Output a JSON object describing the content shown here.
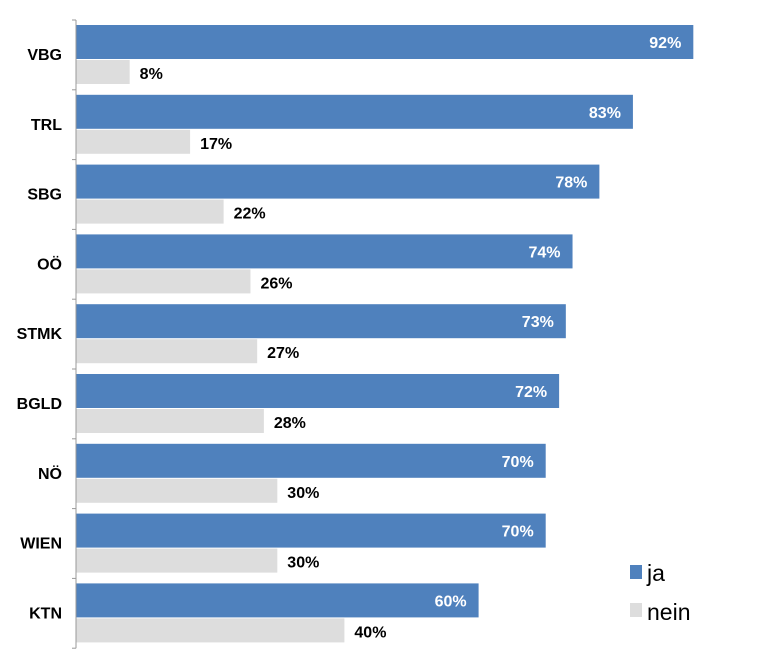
{
  "chart_data": {
    "type": "bar",
    "orientation": "horizontal",
    "categories": [
      "VBG",
      "TRL",
      "SBG",
      "OÖ",
      "STMK",
      "BGLD",
      "NÖ",
      "WIEN",
      "KTN"
    ],
    "series": [
      {
        "name": "ja",
        "values": [
          92,
          83,
          78,
          74,
          73,
          72,
          70,
          70,
          60
        ],
        "color": "#4F81BD"
      },
      {
        "name": "nein",
        "values": [
          8,
          17,
          22,
          26,
          27,
          28,
          30,
          30,
          40
        ],
        "color": "#DDDDDD"
      }
    ],
    "value_suffix": "%",
    "xlim": [
      0,
      100
    ],
    "grid": false,
    "legend": "bottom-right",
    "title": "",
    "xlabel": "",
    "ylabel": ""
  }
}
